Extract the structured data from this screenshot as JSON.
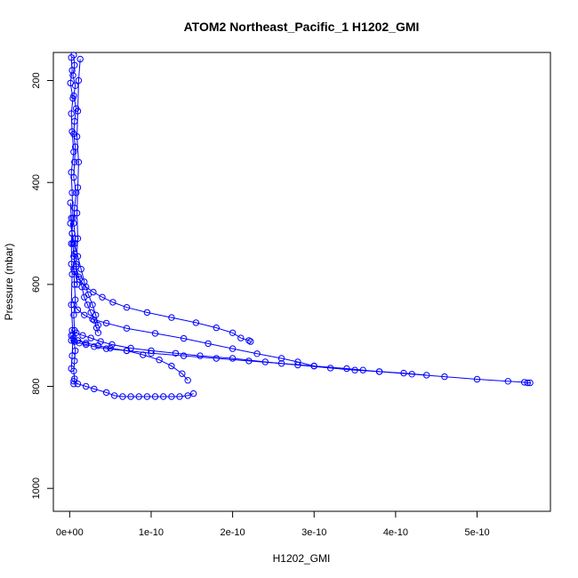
{
  "chart_data": {
    "type": "line",
    "title": "ATOM2 Northeast_Pacific_1 H1202_GMI",
    "xlabel": "H1202_GMI",
    "ylabel": "Pressure (mbar)",
    "xlim": [
      -2e-11,
      5.9e-10
    ],
    "ylim": [
      1045,
      145
    ],
    "y_reversed": true,
    "grid": false,
    "x_ticks": [
      {
        "value": 0,
        "label": "0e+00"
      },
      {
        "value": 1e-10,
        "label": "1e-10"
      },
      {
        "value": 2e-10,
        "label": "2e-10"
      },
      {
        "value": 3e-10,
        "label": "3e-10"
      },
      {
        "value": 4e-10,
        "label": "4e-10"
      },
      {
        "value": 5e-10,
        "label": "5e-10"
      }
    ],
    "y_ticks": [
      {
        "value": 200,
        "label": "200"
      },
      {
        "value": 400,
        "label": "400"
      },
      {
        "value": 600,
        "label": "600"
      },
      {
        "value": 800,
        "label": "800"
      },
      {
        "value": 1000,
        "label": "1000"
      }
    ],
    "series_color": "#0000ff",
    "series": [
      {
        "x": [
          5e-12,
          6e-12,
          4e-12,
          7e-12,
          5e-12,
          8e-12,
          6e-12,
          5e-12,
          7e-12,
          6e-12,
          5e-12,
          8e-12,
          6e-12,
          5e-12,
          7e-12,
          6e-12,
          5e-12,
          6e-12,
          7e-12,
          5e-12,
          6e-12,
          5e-12,
          7e-12,
          6e-12,
          5e-12,
          6e-12,
          5e-12
        ],
        "y": [
          150,
          170,
          190,
          210,
          230,
          255,
          280,
          305,
          330,
          360,
          390,
          420,
          450,
          480,
          510,
          540,
          570,
          600,
          630,
          660,
          690,
          710,
          730,
          750,
          770,
          785,
          795
        ]
      },
      {
        "x": [
          2e-12,
          3e-12,
          1e-12,
          4e-12,
          2e-12,
          3e-12,
          5e-12,
          2e-12,
          3e-12,
          4e-12,
          2e-12,
          3e-12,
          2e-12,
          4e-12,
          3e-12,
          2e-12
        ],
        "y": [
          155,
          180,
          205,
          235,
          265,
          300,
          340,
          380,
          420,
          470,
          520,
          580,
          640,
          700,
          740,
          765
        ]
      },
      {
        "x": [
          1.3e-11,
          1.1e-11,
          1e-11,
          9e-12,
          1.1e-11,
          1e-11,
          9e-12,
          1e-11,
          8e-12,
          9e-12
        ],
        "y": [
          158,
          200,
          260,
          310,
          360,
          410,
          460,
          510,
          560,
          600
        ]
      },
      {
        "x": [
          1e-12,
          2e-12,
          3e-12,
          4e-12,
          5e-12,
          8e-12,
          1.1e-11,
          1.5e-11,
          1.8e-11,
          2.2e-11,
          2.6e-11,
          3e-11,
          3.3e-11,
          3.5e-11
        ],
        "y": [
          440,
          470,
          500,
          520,
          545,
          565,
          585,
          605,
          625,
          640,
          655,
          670,
          685,
          695
        ]
      },
      {
        "x": [
          1e-12,
          3e-12,
          6e-12,
          1e-11,
          1.4e-11,
          1.8e-11,
          2.3e-11,
          2.8e-11,
          3.2e-11,
          3.5e-11
        ],
        "y": [
          480,
          500,
          520,
          545,
          570,
          595,
          620,
          640,
          660,
          680
        ]
      },
      {
        "x": [
          2e-12,
          6e-12,
          1.2e-11,
          2e-11,
          2.9e-11,
          4e-11,
          5.3e-11,
          7e-11,
          9.5e-11,
          1.25e-10,
          1.55e-10,
          1.8e-10,
          2e-10,
          2.1e-10,
          2.2e-10,
          2.22e-10
        ],
        "y": [
          560,
          575,
          590,
          605,
          615,
          625,
          635,
          645,
          655,
          665,
          675,
          685,
          695,
          705,
          710,
          712
        ]
      },
      {
        "x": [
          5e-12,
          1e-11,
          1.8e-11,
          2.8e-11,
          4.5e-11,
          7e-11,
          1.05e-10,
          1.4e-10,
          1.7e-10,
          2e-10,
          2.3e-10,
          2.6e-10,
          2.8e-10,
          3e-10
        ],
        "y": [
          640,
          650,
          660,
          668,
          676,
          686,
          696,
          706,
          716,
          726,
          736,
          745,
          752,
          760
        ]
      },
      {
        "x": [
          3e-12,
          8e-12,
          1.6e-11,
          2.6e-11,
          3.8e-11,
          5.2e-11,
          7.5e-11,
          1e-10,
          1.3e-10,
          1.6e-10,
          2e-10,
          2.4e-10,
          2.8e-10,
          3.2e-10,
          3.5e-10,
          3.8e-10,
          4.1e-10,
          4.38e-10
        ],
        "y": [
          690,
          695,
          700,
          705,
          712,
          718,
          725,
          730,
          735,
          740,
          745,
          752,
          758,
          764,
          768,
          771,
          774,
          778
        ]
      },
      {
        "x": [
          2e-12,
          6e-12,
          1.2e-11,
          2e-11,
          3e-11,
          4.5e-11,
          7e-11,
          1e-10,
          1.4e-10,
          1.8e-10,
          2.2e-10,
          2.6e-10,
          3e-10,
          3.4e-10,
          3.6e-10,
          3.8e-10,
          4.2e-10,
          4.6e-10,
          5e-10,
          5.38e-10,
          5.58e-10,
          5.62e-10,
          5.65e-10
        ],
        "y": [
          710,
          712,
          715,
          718,
          722,
          726,
          730,
          735,
          740,
          745,
          750,
          755,
          760,
          765,
          768,
          771,
          776,
          781,
          786,
          790,
          792,
          793,
          793
        ]
      },
      {
        "x": [
          5e-12,
          1e-11,
          2e-11,
          3e-11,
          4.5e-11,
          5.5e-11,
          6.5e-11,
          7.5e-11,
          8.5e-11,
          9.5e-11,
          1.05e-10,
          1.15e-10,
          1.25e-10,
          1.35e-10,
          1.45e-10,
          1.52e-10
        ],
        "y": [
          790,
          795,
          800,
          805,
          812,
          818,
          820,
          820,
          820,
          820,
          820,
          820,
          820,
          820,
          818,
          814
        ]
      },
      {
        "x": [
          2e-12,
          5e-12,
          1e-11,
          2e-11,
          3.5e-11,
          5e-11,
          7e-11,
          9e-11,
          1.1e-10,
          1.25e-10,
          1.38e-10,
          1.45e-10
        ],
        "y": [
          700,
          705,
          710,
          715,
          720,
          725,
          730,
          738,
          748,
          760,
          775,
          788
        ]
      }
    ]
  }
}
